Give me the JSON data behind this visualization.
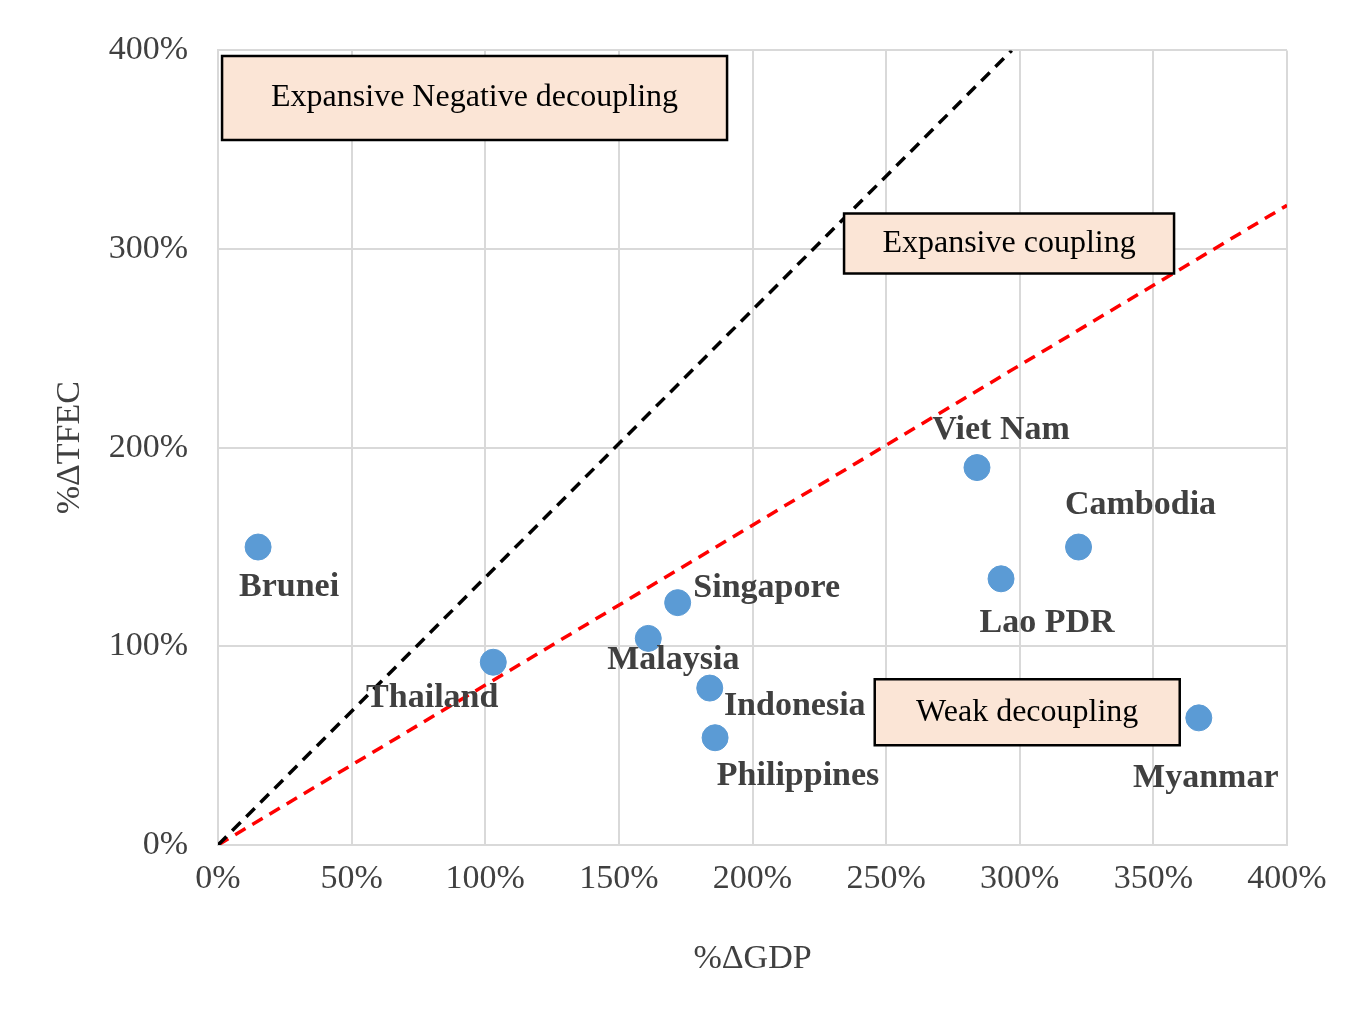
{
  "chart_data": {
    "type": "scatter",
    "xlabel": "%ΔGDP",
    "ylabel": "%ΔTFEC",
    "xlim": [
      0,
      400
    ],
    "ylim": [
      0,
      400
    ],
    "xticks": [
      {
        "value": 0,
        "label": "0%"
      },
      {
        "value": 50,
        "label": "50%"
      },
      {
        "value": 100,
        "label": "100%"
      },
      {
        "value": 150,
        "label": "150%"
      },
      {
        "value": 200,
        "label": "200%"
      },
      {
        "value": 250,
        "label": "250%"
      },
      {
        "value": 300,
        "label": "300%"
      },
      {
        "value": 350,
        "label": "350%"
      },
      {
        "value": 400,
        "label": "400%"
      }
    ],
    "yticks": [
      {
        "value": 0,
        "label": "0%"
      },
      {
        "value": 100,
        "label": "100%"
      },
      {
        "value": 200,
        "label": "200%"
      },
      {
        "value": 300,
        "label": "300%"
      },
      {
        "value": 400,
        "label": "400%"
      }
    ],
    "grid": true,
    "legend": false,
    "series": [
      {
        "type": "line",
        "color": "#000000",
        "line_style": "dashed",
        "marker": "none",
        "x": [
          0,
          297
        ],
        "values": [
          0,
          400
        ]
      },
      {
        "type": "line",
        "color": "#ff0000",
        "line_style": "dashed",
        "marker": "none",
        "x": [
          0,
          400
        ],
        "values": [
          0,
          322
        ]
      },
      {
        "color": "#5b9bd5",
        "marker": "circle",
        "x": [
          15,
          103,
          161,
          172,
          184,
          186,
          284,
          293,
          322,
          367
        ],
        "values": [
          150,
          92,
          104,
          122,
          79,
          54,
          190,
          134,
          150,
          64
        ],
        "value_labels": [
          "Brunei",
          "Thailand",
          "Malaysia",
          "Singapore",
          "Indonesia",
          "Philippines",
          "Viet Nam",
          "Lao PDR",
          "Cambodia",
          "Myanmar"
        ]
      }
    ],
    "annotations": [
      "Expansive Negative decoupling",
      "Expansive coupling",
      "Weak decoupling"
    ]
  }
}
